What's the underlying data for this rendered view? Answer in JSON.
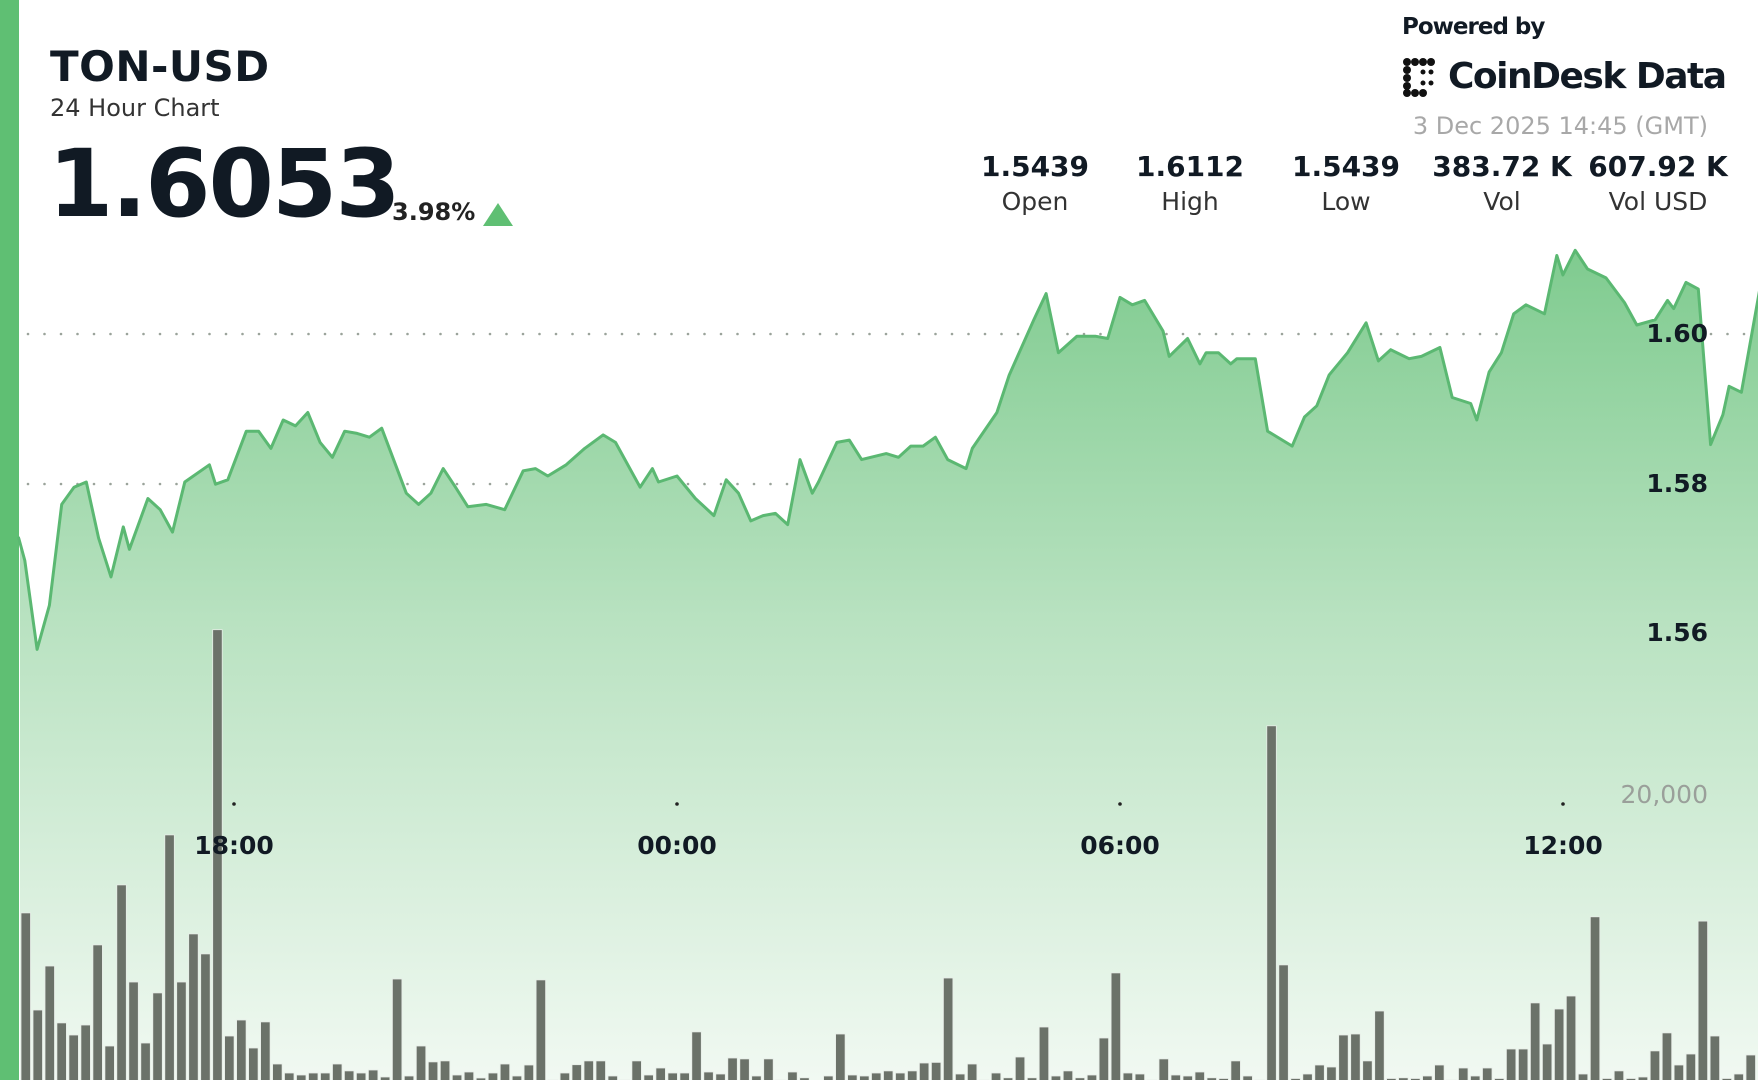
{
  "header": {
    "pair": "TON-USD",
    "subtitle": "24 Hour Chart",
    "price": "1.6053",
    "change_pct": "3.98%",
    "change_direction": "up",
    "powered_by": "Powered by",
    "brand": "CoinDesk Data",
    "timestamp": "3 Dec 2025 14:45 (GMT)"
  },
  "stats": [
    {
      "value": "1.5439",
      "label": "Open"
    },
    {
      "value": "1.6112",
      "label": "High"
    },
    {
      "value": "1.5439",
      "label": "Low"
    },
    {
      "value": "383.72 K",
      "label": "Vol"
    },
    {
      "value": "607.92 K",
      "label": "Vol USD"
    }
  ],
  "colors": {
    "accent": "#5fbf73",
    "line": "#5bb872",
    "volume": "#6b7269"
  },
  "chart_data": {
    "type": "area",
    "price_axis": {
      "ticks": [
        "1.56",
        "1.58",
        "1.60"
      ],
      "grid": "dotted"
    },
    "volume_axis": {
      "ticks": [
        "20,000"
      ]
    },
    "x_ticks": [
      "18:00",
      "00:00",
      "06:00",
      "12:00"
    ],
    "x_range": [
      "14:45",
      "14:45"
    ],
    "price": [
      [
        "15:05",
        1.5727
      ],
      [
        "15:10",
        1.5697
      ],
      [
        "15:20",
        1.5578
      ],
      [
        "15:30",
        1.5637
      ],
      [
        "15:40",
        1.5772
      ],
      [
        "15:50",
        1.5795
      ],
      [
        "16:00",
        1.5802
      ],
      [
        "16:10",
        1.5727
      ],
      [
        "16:20",
        1.5675
      ],
      [
        "16:30",
        1.5742
      ],
      [
        "16:35",
        1.5712
      ],
      [
        "16:50",
        1.578
      ],
      [
        "17:00",
        1.5765
      ],
      [
        "17:10",
        1.5735
      ],
      [
        "17:20",
        1.5802
      ],
      [
        "17:40",
        1.5825
      ],
      [
        "17:45",
        1.5799
      ],
      [
        "17:55",
        1.5805
      ],
      [
        "18:10",
        1.587
      ],
      [
        "18:20",
        1.587
      ],
      [
        "18:30",
        1.5847
      ],
      [
        "18:40",
        1.5885
      ],
      [
        "18:50",
        1.5877
      ],
      [
        "19:00",
        1.5895
      ],
      [
        "19:10",
        1.5855
      ],
      [
        "19:20",
        1.5835
      ],
      [
        "19:30",
        1.587
      ],
      [
        "19:40",
        1.5867
      ],
      [
        "19:50",
        1.5862
      ],
      [
        "20:00",
        1.5874
      ],
      [
        "20:20",
        1.5787
      ],
      [
        "20:30",
        1.5772
      ],
      [
        "20:40",
        1.5787
      ],
      [
        "20:50",
        1.582
      ],
      [
        "21:00",
        1.5795
      ],
      [
        "21:10",
        1.5769
      ],
      [
        "21:25",
        1.5772
      ],
      [
        "21:40",
        1.5765
      ],
      [
        "21:55",
        1.5817
      ],
      [
        "22:05",
        1.582
      ],
      [
        "22:15",
        1.581
      ],
      [
        "22:30",
        1.5825
      ],
      [
        "22:45",
        1.5847
      ],
      [
        "23:00",
        1.5865
      ],
      [
        "23:10",
        1.5855
      ],
      [
        "23:30",
        1.5795
      ],
      [
        "23:40",
        1.582
      ],
      [
        "23:45",
        1.5802
      ],
      [
        "00:00",
        1.581
      ],
      [
        "00:15",
        1.578
      ],
      [
        "00:30",
        1.5757
      ],
      [
        "00:40",
        1.5805
      ],
      [
        "00:50",
        1.5787
      ],
      [
        "01:00",
        1.575
      ],
      [
        "01:10",
        1.5757
      ],
      [
        "01:20",
        1.576
      ],
      [
        "01:30",
        1.5745
      ],
      [
        "01:40",
        1.5832
      ],
      [
        "01:50",
        1.5787
      ],
      [
        "01:55",
        1.5802
      ],
      [
        "02:10",
        1.5855
      ],
      [
        "02:20",
        1.5858
      ],
      [
        "02:30",
        1.5832
      ],
      [
        "02:50",
        1.584
      ],
      [
        "03:00",
        1.5835
      ],
      [
        "03:10",
        1.585
      ],
      [
        "03:20",
        1.585
      ],
      [
        "03:30",
        1.5862
      ],
      [
        "03:40",
        1.5832
      ],
      [
        "03:55",
        1.582
      ],
      [
        "04:00",
        1.5847
      ],
      [
        "04:20",
        1.5895
      ],
      [
        "04:30",
        1.5945
      ],
      [
        "04:50",
        1.6019
      ],
      [
        "05:00",
        1.6054
      ],
      [
        "05:10",
        1.5975
      ],
      [
        "05:25",
        1.5997
      ],
      [
        "05:40",
        1.5997
      ],
      [
        "05:50",
        1.5994
      ],
      [
        "06:00",
        1.6049
      ],
      [
        "06:10",
        1.6039
      ],
      [
        "06:20",
        1.6045
      ],
      [
        "06:35",
        1.6004
      ],
      [
        "06:40",
        1.597
      ],
      [
        "06:55",
        1.5994
      ],
      [
        "07:05",
        1.596
      ],
      [
        "07:10",
        1.5975
      ],
      [
        "07:20",
        1.5975
      ],
      [
        "07:30",
        1.596
      ],
      [
        "07:35",
        1.5967
      ],
      [
        "07:50",
        1.5967
      ],
      [
        "08:00",
        1.587
      ],
      [
        "08:20",
        1.585
      ],
      [
        "08:30",
        1.5889
      ],
      [
        "08:40",
        1.5904
      ],
      [
        "08:50",
        1.5945
      ],
      [
        "09:05",
        1.5975
      ],
      [
        "09:20",
        1.6015
      ],
      [
        "09:30",
        1.5964
      ],
      [
        "09:40",
        1.5979
      ],
      [
        "09:55",
        1.5967
      ],
      [
        "10:05",
        1.597
      ],
      [
        "10:20",
        1.5982
      ],
      [
        "10:30",
        1.5915
      ],
      [
        "10:45",
        1.5907
      ],
      [
        "10:50",
        1.5885
      ],
      [
        "11:00",
        1.5949
      ],
      [
        "11:10",
        1.5975
      ],
      [
        "11:20",
        1.6027
      ],
      [
        "11:30",
        1.6039
      ],
      [
        "11:45",
        1.6027
      ],
      [
        "11:55",
        1.6105
      ],
      [
        "12:00",
        1.6079
      ],
      [
        "12:10",
        1.6112
      ],
      [
        "12:20",
        1.6087
      ],
      [
        "12:35",
        1.6075
      ],
      [
        "12:50",
        1.6042
      ],
      [
        "13:00",
        1.6012
      ],
      [
        "13:15",
        1.6019
      ],
      [
        "13:25",
        1.6045
      ],
      [
        "13:30",
        1.6034
      ],
      [
        "13:40",
        1.6069
      ],
      [
        "13:50",
        1.606
      ],
      [
        "14:00",
        1.5852
      ],
      [
        "14:10",
        1.5892
      ],
      [
        "14:15",
        1.593
      ],
      [
        "14:25",
        1.5922
      ],
      [
        "14:40",
        1.606
      ],
      [
        "14:45",
        1.6053
      ]
    ],
    "volume": [
      11870,
      5175,
      8210,
      4280,
      3450,
      4140,
      9660,
      2690,
      13800,
      7100,
      2900,
      6350,
      17250,
      7100,
      10420,
      9040,
      31400,
      3380,
      4485,
      2550,
      4350,
      1450,
      830,
      690,
      830,
      830,
      1450,
      970,
      830,
      1035,
      550,
      7310,
      620,
      2690,
      1590,
      1660,
      690,
      900,
      480,
      830,
      1450,
      620,
      1380,
      7245,
      345,
      830,
      1400,
      1660,
      1660,
      620,
      345,
      1660,
      690,
      1170,
      830,
      830,
      3660,
      900,
      760,
      1860,
      1800,
      620,
      1800,
      345,
      900,
      500,
      300,
      620,
      3520,
      690,
      620,
      830,
      970,
      830,
      970,
      1520,
      1560,
      7380,
      760,
      1450,
      345,
      830,
      500,
      1930,
      500,
      4000,
      620,
      970,
      500,
      690,
      3240,
      7730,
      830,
      760,
      345,
      1800,
      690,
      620,
      900,
      500,
      450,
      1660,
      620,
      345,
      24770,
      8280,
      450,
      760,
      1380,
      1240,
      3450,
      3520,
      1660,
      5100,
      450,
      500,
      450,
      620,
      1380,
      345,
      1170,
      620,
      1170,
      450,
      2480,
      2480,
      5660,
      2830,
      5240,
      6140,
      760,
      11600,
      450,
      970,
      450,
      550,
      2350,
      3590,
      1380,
      2140,
      11300,
      3380,
      450,
      760,
      2070
    ]
  }
}
